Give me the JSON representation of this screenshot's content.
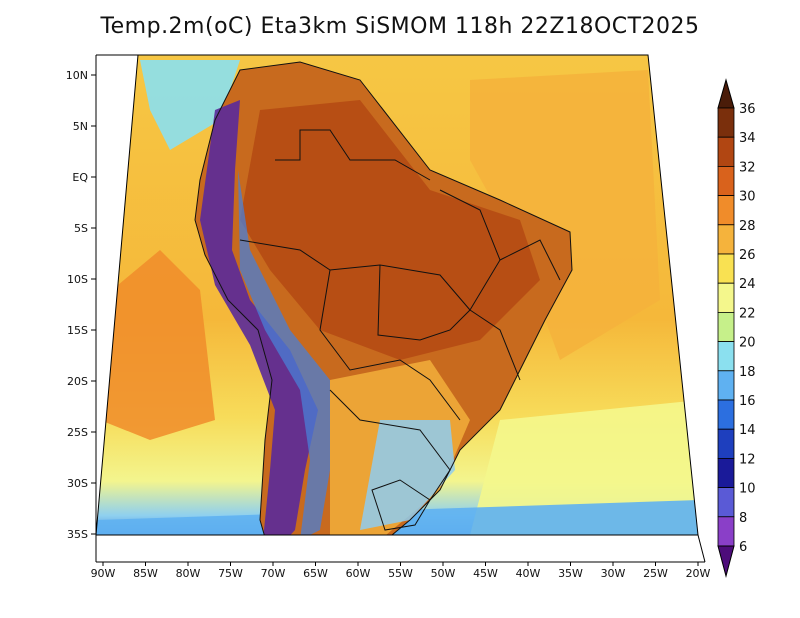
{
  "title": "Temp.2m(oC) Eta3km SiSMOM 118h 22Z18OCT2025",
  "lat_labels": [
    "10N",
    "5N",
    "EQ",
    "5S",
    "10S",
    "15S",
    "20S",
    "25S",
    "30S",
    "35S"
  ],
  "lon_labels": [
    "90W",
    "85W",
    "80W",
    "75W",
    "70W",
    "65W",
    "60W",
    "55W",
    "50W",
    "45W",
    "40W",
    "35W",
    "30W",
    "25W",
    "20W"
  ],
  "colorbar": {
    "labels": [
      "36",
      "34",
      "32",
      "30",
      "28",
      "26",
      "24",
      "22",
      "20",
      "18",
      "16",
      "14",
      "12",
      "10",
      "8",
      "6"
    ],
    "colors": [
      "#4a1c09",
      "#7a2f0c",
      "#b14612",
      "#d9621c",
      "#f08c2a",
      "#f5b33c",
      "#f9e152",
      "#f4f78c",
      "#c6f08a",
      "#8be0ef",
      "#5fb1f1",
      "#2c6fe0",
      "#1e3fbe",
      "#1a1a99",
      "#5a5ad6",
      "#8a3fc8",
      "#6a0fa0"
    ],
    "top_color": "#4a1c09",
    "bottom_color": "#4d0c7a"
  },
  "colors": {
    "ocean_pacific": "#f5c23f",
    "ocean_atlantic": "#f4b741",
    "amazon": "#c86a1e",
    "andes": "#5a2a9a",
    "south_cool": "#8fcdf0"
  }
}
